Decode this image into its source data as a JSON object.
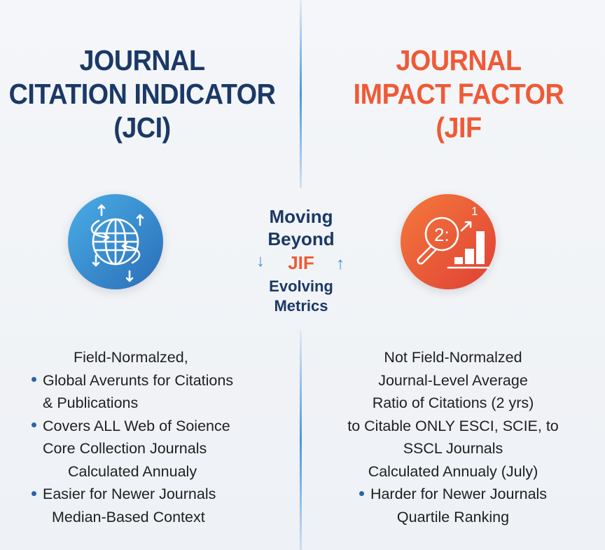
{
  "left": {
    "title_lines": [
      "JOURNAL",
      "CITATION INDICATOR",
      "(JCI)"
    ],
    "icon": "globe-arrows-icon",
    "color": "#1b3966",
    "items": [
      {
        "text": "Field-Normalzed,",
        "bullet": false
      },
      {
        "text": "Global Averunts for Citations",
        "bullet": true
      },
      {
        "text": "& Publications",
        "bullet": false
      },
      {
        "text": "Covers ALL Web of Soience",
        "bullet": true
      },
      {
        "text": "Core Collection Journals",
        "bullet": false
      },
      {
        "text": "Calculated Annualy",
        "bullet": false
      },
      {
        "text": "Easier for Newer Journals",
        "bullet": true
      },
      {
        "text": "Median-Based Context",
        "bullet": false
      }
    ]
  },
  "right": {
    "title_lines": [
      "JOURNAL",
      "IMPACT FACTOR",
      "(JIF"
    ],
    "icon": "magnifier-bar-chart-icon",
    "icon_text": {
      "lens": "2:",
      "arrow_label": "1"
    },
    "color": "#ef5a36",
    "items": [
      {
        "text": "Not Field-Normalzed",
        "bullet": false
      },
      {
        "text": "Journal-Level Average",
        "bullet": false
      },
      {
        "text": "Ratio of Citations (2 yrs)",
        "bullet": false
      },
      {
        "text": "to Citable ONLY ESCI, SCIE, to",
        "bullet": false
      },
      {
        "text": "SSCL Journals",
        "bullet": false
      },
      {
        "text": "Calculated Annualy (July)",
        "bullet": false
      },
      {
        "text": "Harder for Newer Journals",
        "bullet": true
      },
      {
        "text": "Quartile Ranking",
        "bullet": false
      }
    ]
  },
  "center": {
    "line1": "Moving",
    "line2": "Beyond",
    "jif": "JIF",
    "line3": "Evolving",
    "line4": "Metrics",
    "arrow_color": "#3d8fd6"
  }
}
